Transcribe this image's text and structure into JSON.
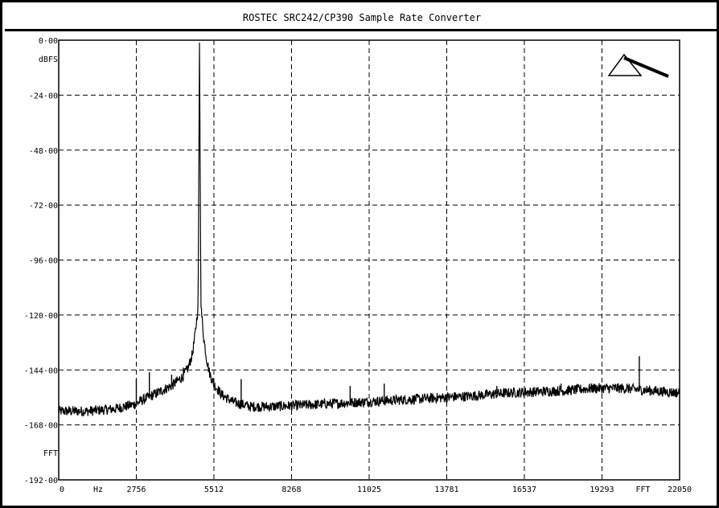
{
  "window": {
    "title": "ROSTEC SRC242/CP390 Sample Rate Converter"
  },
  "chart_data": {
    "type": "line",
    "title": "",
    "xlabel": "Hz",
    "ylabel": "dBFS",
    "x_unit_label": "Hz",
    "y_unit_label": "dBFS",
    "y_mode_label": "FFT",
    "x_mode_label": "FFT",
    "xlim": [
      0,
      22050
    ],
    "ylim": [
      -192,
      0
    ],
    "x_ticks": [
      0,
      2756,
      5512,
      8268,
      11025,
      13781,
      16537,
      19293,
      22050
    ],
    "x_tick_labels": [
      "0",
      "2756",
      "5512",
      "8268",
      "11025",
      "13781",
      "16537",
      "19293",
      "22050"
    ],
    "y_ticks": [
      0,
      -24,
      -48,
      -72,
      -96,
      -120,
      -144,
      -168,
      -192
    ],
    "y_tick_labels": [
      "0·00",
      "-24·00",
      "-48·00",
      "-72·00",
      "-96·00",
      "-120·00",
      "-144·00",
      "-168·00",
      "-192·00"
    ],
    "grid": "dashed",
    "series": [
      {
        "x": [
          0,
          1000,
          2000,
          2700,
          3000,
          3500,
          4000,
          4400,
          4600,
          4750,
          4850,
          4950,
          5000,
          5050,
          5150,
          5250,
          5350,
          5500,
          5800,
          6200,
          6800,
          7500,
          8500,
          10000,
          11500,
          13000,
          14500,
          16000,
          17000,
          18000,
          19000,
          20000,
          21000,
          22050
        ],
        "y": [
          -162,
          -162,
          -161,
          -159,
          -157,
          -154,
          -151,
          -147,
          -143,
          -137,
          -128,
          -116,
          -1,
          -116,
          -130,
          -139,
          -145,
          -150,
          -155,
          -158,
          -160,
          -160,
          -159.5,
          -158.5,
          -157.5,
          -156.5,
          -155.5,
          -154,
          -153.5,
          -153,
          -152,
          -152,
          -153,
          -154
        ]
      }
    ],
    "spurs": [
      {
        "x": 2756,
        "y": -148
      },
      {
        "x": 3220,
        "y": -145
      },
      {
        "x": 4010,
        "y": -146
      },
      {
        "x": 4430,
        "y": -143
      },
      {
        "x": 6480,
        "y": -148
      },
      {
        "x": 10350,
        "y": -151
      },
      {
        "x": 11560,
        "y": -150
      },
      {
        "x": 15560,
        "y": -151
      },
      {
        "x": 17840,
        "y": -150
      },
      {
        "x": 20180,
        "y": -150
      },
      {
        "x": 20620,
        "y": -138
      }
    ]
  }
}
